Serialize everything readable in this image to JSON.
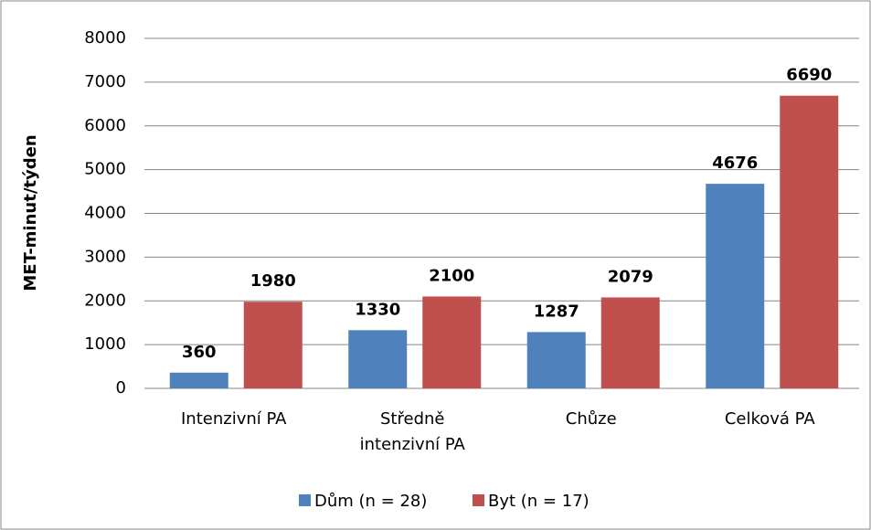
{
  "chart_data": {
    "type": "bar",
    "categories": [
      "Intenzivní PA",
      "Středně intenzivní PA",
      "Chůze",
      "Celková PA"
    ],
    "series": [
      {
        "name": "Dům (n = 28)",
        "color": "#4f81bd",
        "values": [
          360,
          1330,
          1287,
          4676
        ]
      },
      {
        "name": "Byt (n = 17)",
        "color": "#c0504d",
        "values": [
          1980,
          2100,
          2079,
          6690
        ]
      }
    ],
    "y_label": "MET-minut/týden",
    "ylim": [
      0,
      8000
    ],
    "yticks": [
      0,
      1000,
      2000,
      3000,
      4000,
      5000,
      6000,
      7000,
      8000
    ],
    "grid": true,
    "legend": "bottom"
  }
}
